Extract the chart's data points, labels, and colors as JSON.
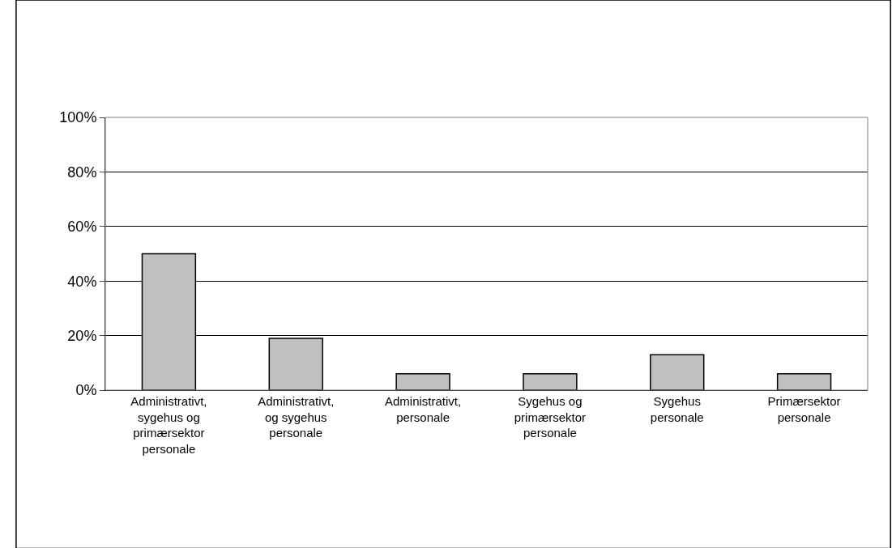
{
  "chart_data": {
    "type": "bar",
    "categories": [
      "Administrativt, sygehus og primærsektor personale",
      "Administrativt, og sygehus personale",
      "Administrativt, personale",
      "Sygehus og primærsektor personale",
      "Sygehus personale",
      "Primærsektor personale"
    ],
    "values": [
      50,
      19,
      6,
      6,
      13,
      6
    ],
    "color": "#c0c0c0",
    "ylim": [
      0,
      100
    ],
    "yticks": [
      {
        "value": 0,
        "label": "0%"
      },
      {
        "value": 20,
        "label": "20%"
      },
      {
        "value": 40,
        "label": "40%"
      },
      {
        "value": 60,
        "label": "60%"
      },
      {
        "value": 80,
        "label": "80%"
      },
      {
        "value": 100,
        "label": "100%"
      }
    ],
    "grid": "y"
  }
}
